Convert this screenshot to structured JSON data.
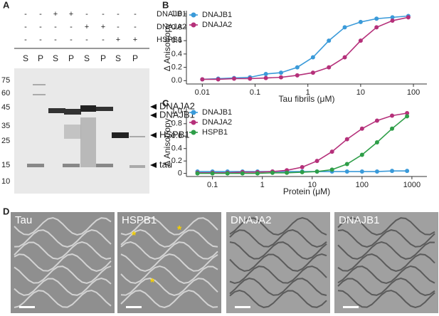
{
  "panel_labels": [
    "A",
    "B",
    "C",
    "D"
  ],
  "gel": {
    "conditions": [
      {
        "name": "DNAJB1",
        "signs": [
          "-",
          "-",
          "+",
          "+",
          "-",
          "-",
          "-",
          "-"
        ]
      },
      {
        "name": "DNAJA2",
        "signs": [
          "-",
          "-",
          "-",
          "-",
          "+",
          "+",
          "-",
          "-"
        ]
      },
      {
        "name": "HSPB1",
        "signs": [
          "-",
          "-",
          "-",
          "-",
          "-",
          "-",
          "+",
          "+"
        ]
      }
    ],
    "lanes": [
      "S",
      "P",
      "S",
      "P",
      "S",
      "P",
      "S",
      "P"
    ],
    "markers": [
      "75",
      "60",
      "45",
      "35",
      "25",
      "15",
      "10"
    ],
    "bands": [
      "DNAJA2",
      "DNAJB1",
      "HSPB1",
      "tau"
    ]
  },
  "chart_data": [
    {
      "type": "line",
      "x_label": "Tau fibrils (μM)",
      "y_label": "Δ Anisotropy",
      "log_x": true,
      "legend": "top-left",
      "x": [
        0.01,
        0.02,
        0.04,
        0.08,
        0.16,
        0.31,
        0.63,
        1.25,
        2.5,
        5,
        10,
        20,
        40,
        80
      ],
      "xlim": [
        0.005,
        180
      ],
      "xticks": [
        0.01,
        0.1,
        1,
        10,
        100
      ],
      "ylim": [
        -0.05,
        1.05
      ],
      "yticks": [
        {
          "value": 0,
          "label": "0.0"
        },
        0.2,
        0.4,
        0.6,
        0.8,
        {
          "value": 1,
          "label": "1.0"
        }
      ],
      "series": [
        {
          "name": "DNAJB1",
          "color": "#3a9ad9",
          "values": [
            0.02,
            0.03,
            0.04,
            0.05,
            0.1,
            0.12,
            0.2,
            0.35,
            0.6,
            0.8,
            0.88,
            0.93,
            0.95,
            0.97
          ]
        },
        {
          "name": "DNAJA2",
          "color": "#b5307a",
          "values": [
            0.02,
            0.02,
            0.03,
            0.03,
            0.04,
            0.05,
            0.08,
            0.12,
            0.2,
            0.35,
            0.6,
            0.8,
            0.9,
            0.95
          ]
        }
      ]
    },
    {
      "type": "line",
      "x_label": "Protein (μM)",
      "y_label": "Δ Anisotropy",
      "log_x": true,
      "legend": "top-left",
      "x": [
        0.05,
        0.1,
        0.2,
        0.4,
        0.8,
        1.6,
        3.1,
        6.3,
        12.5,
        25,
        50,
        100,
        200,
        400,
        800
      ],
      "xlim": [
        0.03,
        2000
      ],
      "xticks": [
        0.1,
        1,
        10,
        100,
        1000
      ],
      "ylim": [
        -0.05,
        1.05
      ],
      "yticks": [
        0,
        0.2,
        0.4,
        0.6,
        0.8,
        {
          "value": 1,
          "label": "1.0"
        }
      ],
      "series": [
        {
          "name": "DNAJB1",
          "color": "#3a9ad9",
          "values": [
            0.03,
            0.03,
            0.03,
            0.03,
            0.03,
            0.03,
            0.03,
            0.03,
            0.03,
            0.03,
            0.03,
            0.03,
            0.03,
            0.04,
            0.04
          ]
        },
        {
          "name": "DNAJA2",
          "color": "#b5307a",
          "values": [
            0.01,
            0.01,
            0.01,
            0.02,
            0.02,
            0.03,
            0.05,
            0.1,
            0.2,
            0.35,
            0.55,
            0.72,
            0.85,
            0.93,
            0.97
          ]
        },
        {
          "name": "HSPB1",
          "color": "#2e9e48",
          "values": [
            0,
            0,
            0,
            0,
            0,
            0.01,
            0.01,
            0.02,
            0.03,
            0.06,
            0.15,
            0.3,
            0.5,
            0.72,
            0.92
          ]
        }
      ]
    }
  ],
  "micrographs": [
    {
      "label": "Tau"
    },
    {
      "label": "HSPB1",
      "annotations": [
        "*",
        "*",
        "*"
      ]
    },
    {
      "label": "DNAJA2"
    },
    {
      "label": "DNAJB1"
    }
  ]
}
